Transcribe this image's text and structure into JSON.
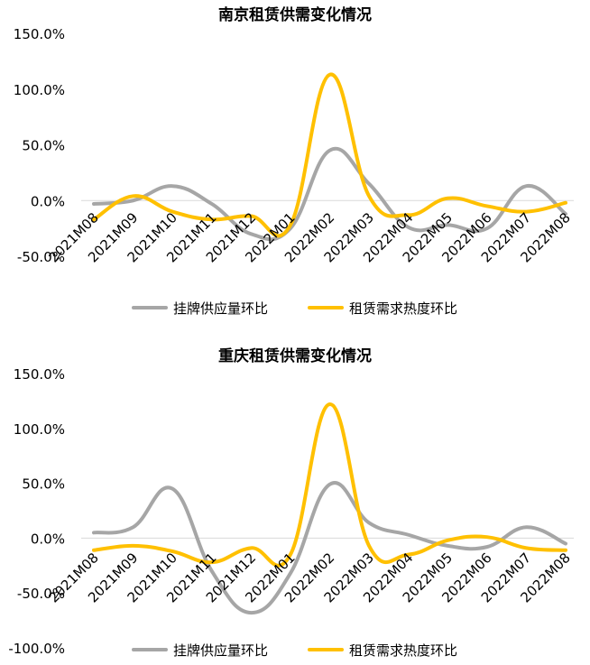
{
  "colors": {
    "supply": "#a6a6a6",
    "demand": "#ffc000",
    "axis": "#d9d9d9",
    "text": "#000000"
  },
  "chart_data": [
    {
      "type": "line",
      "title": "南京租赁供需变化情况",
      "categories": [
        "2021M08",
        "2021M09",
        "2021M10",
        "2021M11",
        "2021M12",
        "2022M01",
        "2022M02",
        "2022M03",
        "2022M04",
        "2022M05",
        "2022M06",
        "2022M07",
        "2022M08"
      ],
      "y_ticks": [
        "150.0%",
        "100.0%",
        "50.0%",
        "0.0%",
        "-50.0%"
      ],
      "ylim": [
        -50,
        150
      ],
      "y_tick_values": [
        150,
        100,
        50,
        0,
        -50
      ],
      "grid": false,
      "legend_position": "bottom",
      "series": [
        {
          "name": "挂牌供应量环比",
          "color": "#a6a6a6",
          "values": [
            -3,
            0,
            13,
            -3,
            -30,
            -25,
            45,
            15,
            -24,
            -22,
            -25,
            13,
            -12
          ]
        },
        {
          "name": "租赁需求热度环比",
          "color": "#ffc000",
          "values": [
            -17,
            4,
            -10,
            -17,
            -14,
            -22,
            113,
            4,
            -13,
            2,
            -5,
            -10,
            -2
          ]
        }
      ]
    },
    {
      "type": "line",
      "title": "重庆租赁供需变化情况",
      "categories": [
        "2021M08",
        "2021M09",
        "2021M10",
        "2021M11",
        "2021M12",
        "2022M01",
        "2022M02",
        "2022M03",
        "2022M04",
        "2022M05",
        "2022M06",
        "2022M07",
        "2022M08"
      ],
      "y_ticks": [
        "150.0%",
        "100.0%",
        "50.0%",
        "0.0%",
        "-50.0%",
        "-100.0%"
      ],
      "ylim": [
        -100,
        150
      ],
      "y_tick_values": [
        150,
        100,
        50,
        0,
        -50,
        -100
      ],
      "grid": false,
      "legend_position": "bottom",
      "series": [
        {
          "name": "挂牌供应量环比",
          "color": "#a6a6a6",
          "values": [
            5,
            10,
            45,
            -30,
            -68,
            -32,
            49,
            14,
            3,
            -7,
            -8,
            10,
            -5
          ]
        },
        {
          "name": "租赁需求热度环比",
          "color": "#ffc000",
          "values": [
            -11,
            -7,
            -12,
            -22,
            -9,
            -15,
            122,
            -7,
            -15,
            -2,
            1,
            -9,
            -11
          ]
        }
      ]
    }
  ]
}
